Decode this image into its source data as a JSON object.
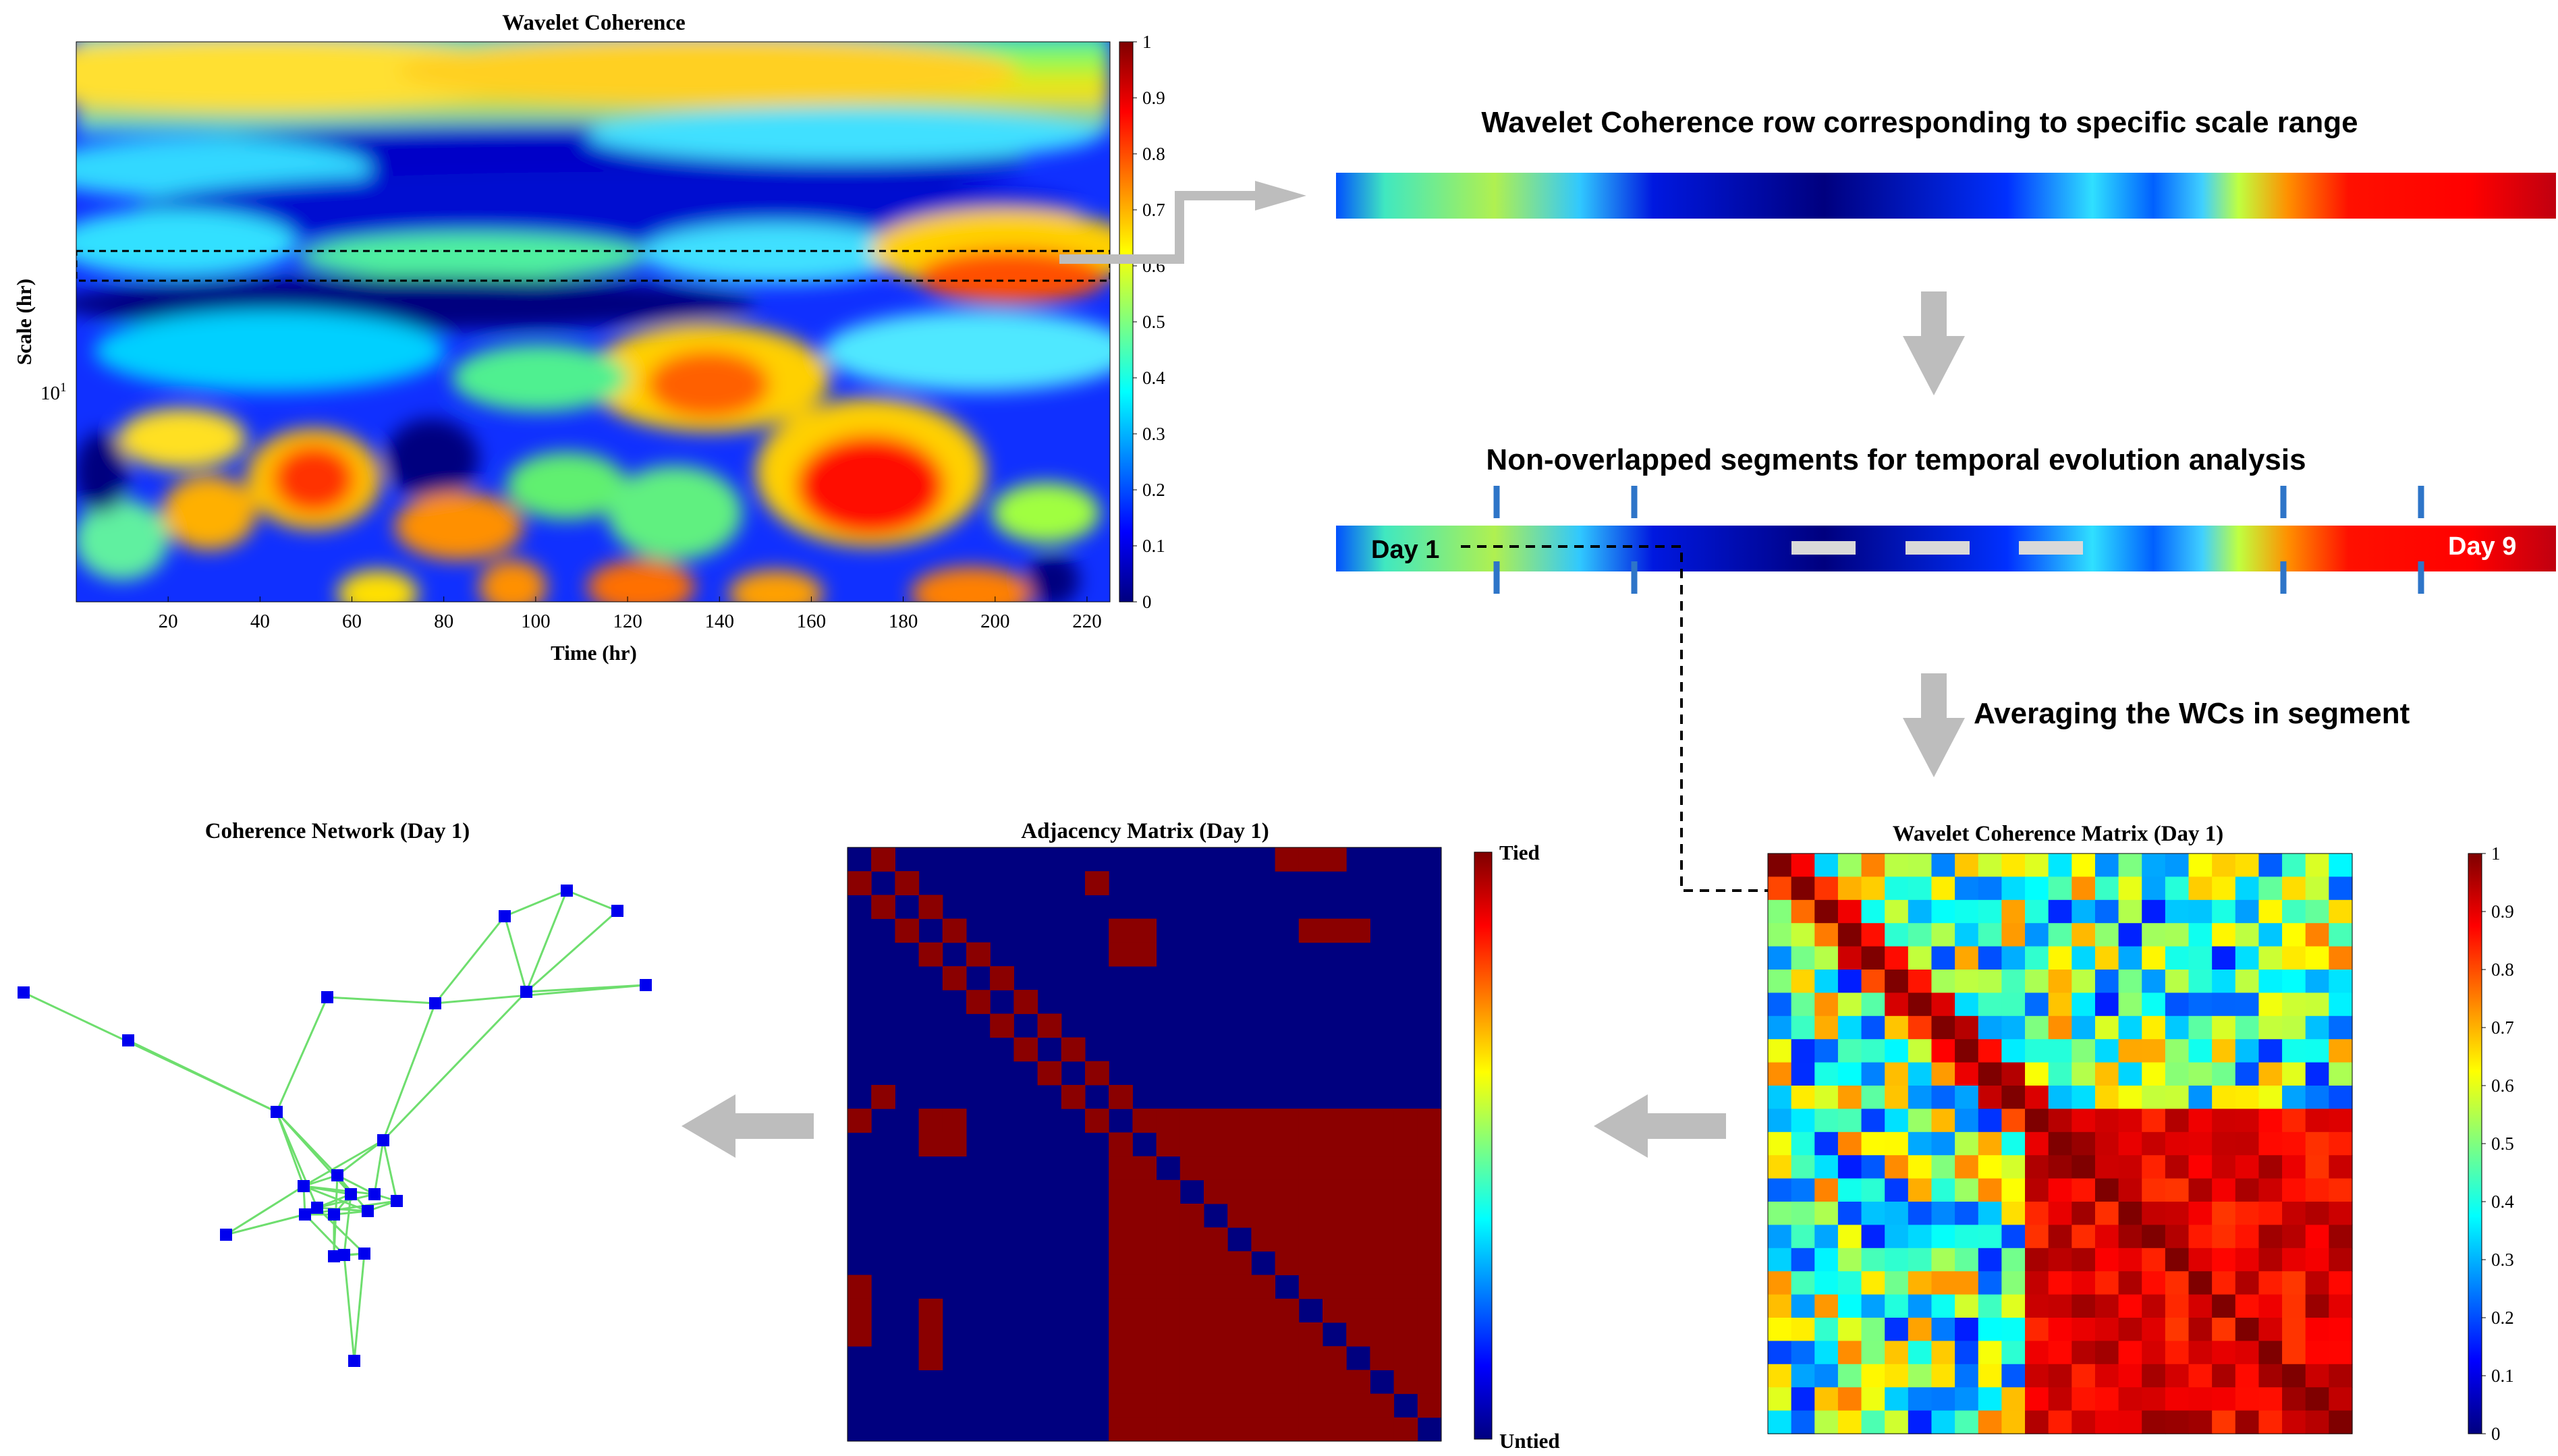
{
  "colors": {
    "jet": [
      "#00007f",
      "#0000ff",
      "#007fff",
      "#00ffff",
      "#7fff7f",
      "#ffff00",
      "#ff7f00",
      "#ff0000",
      "#7f0000"
    ],
    "adj_tied": "#8b0000",
    "adj_untied": "#00007f",
    "network_node": "#0000ee",
    "network_edge": "#6ede6e",
    "step_arrow": "#bdbdbd",
    "segment_tick": "#2e75c8",
    "segment_gap": "#d9d9d9"
  },
  "wc_plot": {
    "title": "Wavelet Coherence",
    "xlabel": "Time (hr)",
    "ylabel": "Scale (hr)",
    "ytick": "10",
    "ytick_exp": "1",
    "xticks": [
      "20",
      "40",
      "60",
      "80",
      "100",
      "120",
      "140",
      "160",
      "180",
      "200",
      "220"
    ],
    "colorbar_ticks": [
      "0",
      "0.1",
      "0.2",
      "0.3",
      "0.4",
      "0.5",
      "0.6",
      "0.7",
      "0.8",
      "0.9",
      "1"
    ]
  },
  "steps": {
    "row_title": "Wavelet Coherence row corresponding to specific scale range",
    "segments_title": "Non-overlapped segments for temporal evolution analysis",
    "averaging": "Averaging the WCs in segment",
    "day_start": "Day 1",
    "day_end": "Day 9"
  },
  "wcm": {
    "title": "Wavelet Coherence Matrix (Day 1)",
    "colorbar_ticks": [
      "0",
      "0.1",
      "0.2",
      "0.3",
      "0.4",
      "0.5",
      "0.6",
      "0.7",
      "0.8",
      "0.9",
      "1"
    ]
  },
  "adjacency": {
    "title": "Adjacency Matrix (Day 1)",
    "tied_label": "Tied",
    "untied_label": "Untied"
  },
  "network": {
    "title": "Coherence Network (Day 1)"
  }
}
